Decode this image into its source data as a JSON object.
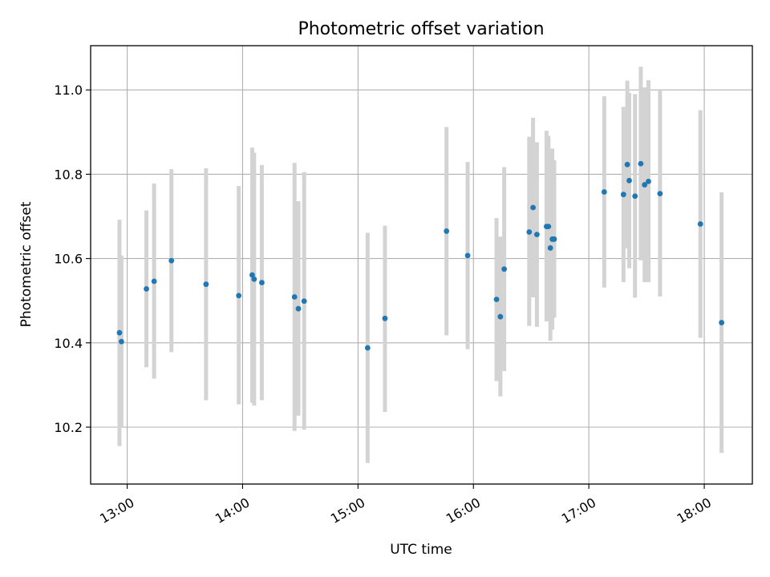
{
  "chart_data": {
    "type": "scatter",
    "title": "Photometric offset variation",
    "xlabel": "UTC time",
    "ylabel": "Photometric offset",
    "xlim": [
      "12:41",
      "18:25"
    ],
    "ylim": [
      10.065,
      11.105
    ],
    "x_ticks": [
      "13:00",
      "14:00",
      "15:00",
      "16:00",
      "17:00",
      "18:00"
    ],
    "y_ticks": [
      "10.2",
      "10.4",
      "10.6",
      "10.8",
      "11.0"
    ],
    "grid": true,
    "marker_color": "#1f77b4",
    "errorbar_color": "#d3d3d3",
    "points": [
      {
        "time": "12:56",
        "value": 10.424,
        "low": 10.155,
        "high": 10.692
      },
      {
        "time": "12:57",
        "value": 10.403,
        "low": 10.198,
        "high": 10.607
      },
      {
        "time": "13:10",
        "value": 10.528,
        "low": 10.342,
        "high": 10.714
      },
      {
        "time": "13:14",
        "value": 10.546,
        "low": 10.315,
        "high": 10.778
      },
      {
        "time": "13:23",
        "value": 10.595,
        "low": 10.378,
        "high": 10.812
      },
      {
        "time": "13:41",
        "value": 10.539,
        "low": 10.264,
        "high": 10.814
      },
      {
        "time": "13:58",
        "value": 10.512,
        "low": 10.254,
        "high": 10.772
      },
      {
        "time": "14:05",
        "value": 10.561,
        "low": 10.258,
        "high": 10.863
      },
      {
        "time": "14:06",
        "value": 10.551,
        "low": 10.251,
        "high": 10.851
      },
      {
        "time": "14:10",
        "value": 10.543,
        "low": 10.264,
        "high": 10.822
      },
      {
        "time": "14:27",
        "value": 10.509,
        "low": 10.191,
        "high": 10.827
      },
      {
        "time": "14:29",
        "value": 10.481,
        "low": 10.227,
        "high": 10.736
      },
      {
        "time": "14:32",
        "value": 10.499,
        "low": 10.194,
        "high": 10.805
      },
      {
        "time": "15:05",
        "value": 10.388,
        "low": 10.115,
        "high": 10.661
      },
      {
        "time": "15:14",
        "value": 10.458,
        "low": 10.236,
        "high": 10.678
      },
      {
        "time": "15:46",
        "value": 10.665,
        "low": 10.418,
        "high": 10.912
      },
      {
        "time": "15:57",
        "value": 10.607,
        "low": 10.385,
        "high": 10.829
      },
      {
        "time": "16:12",
        "value": 10.503,
        "low": 10.309,
        "high": 10.696
      },
      {
        "time": "16:14",
        "value": 10.462,
        "low": 10.273,
        "high": 10.652
      },
      {
        "time": "16:16",
        "value": 10.575,
        "low": 10.333,
        "high": 10.817
      },
      {
        "time": "16:29",
        "value": 10.663,
        "low": 10.44,
        "high": 10.889
      },
      {
        "time": "16:31",
        "value": 10.721,
        "low": 10.508,
        "high": 10.934
      },
      {
        "time": "16:33",
        "value": 10.657,
        "low": 10.438,
        "high": 10.876
      },
      {
        "time": "16:38",
        "value": 10.676,
        "low": 10.451,
        "high": 10.903
      },
      {
        "time": "16:39",
        "value": 10.676,
        "low": 10.461,
        "high": 10.891
      },
      {
        "time": "16:40",
        "value": 10.625,
        "low": 10.405,
        "high": 10.845
      },
      {
        "time": "16:41",
        "value": 10.646,
        "low": 10.431,
        "high": 10.861
      },
      {
        "time": "16:42",
        "value": 10.646,
        "low": 10.46,
        "high": 10.833
      },
      {
        "time": "17:08",
        "value": 10.758,
        "low": 10.531,
        "high": 10.985
      },
      {
        "time": "17:18",
        "value": 10.752,
        "low": 10.544,
        "high": 10.96
      },
      {
        "time": "17:20",
        "value": 10.823,
        "low": 10.624,
        "high": 11.022
      },
      {
        "time": "17:21",
        "value": 10.785,
        "low": 10.577,
        "high": 10.993
      },
      {
        "time": "17:24",
        "value": 10.748,
        "low": 10.507,
        "high": 10.99
      },
      {
        "time": "17:27",
        "value": 10.825,
        "low": 10.596,
        "high": 11.055
      },
      {
        "time": "17:29",
        "value": 10.775,
        "low": 10.544,
        "high": 11.006
      },
      {
        "time": "17:31",
        "value": 10.783,
        "low": 10.544,
        "high": 11.023
      },
      {
        "time": "17:37",
        "value": 10.754,
        "low": 10.51,
        "high": 10.998
      },
      {
        "time": "17:58",
        "value": 10.682,
        "low": 10.412,
        "high": 10.952
      },
      {
        "time": "18:09",
        "value": 10.448,
        "low": 10.139,
        "high": 10.757
      }
    ]
  }
}
